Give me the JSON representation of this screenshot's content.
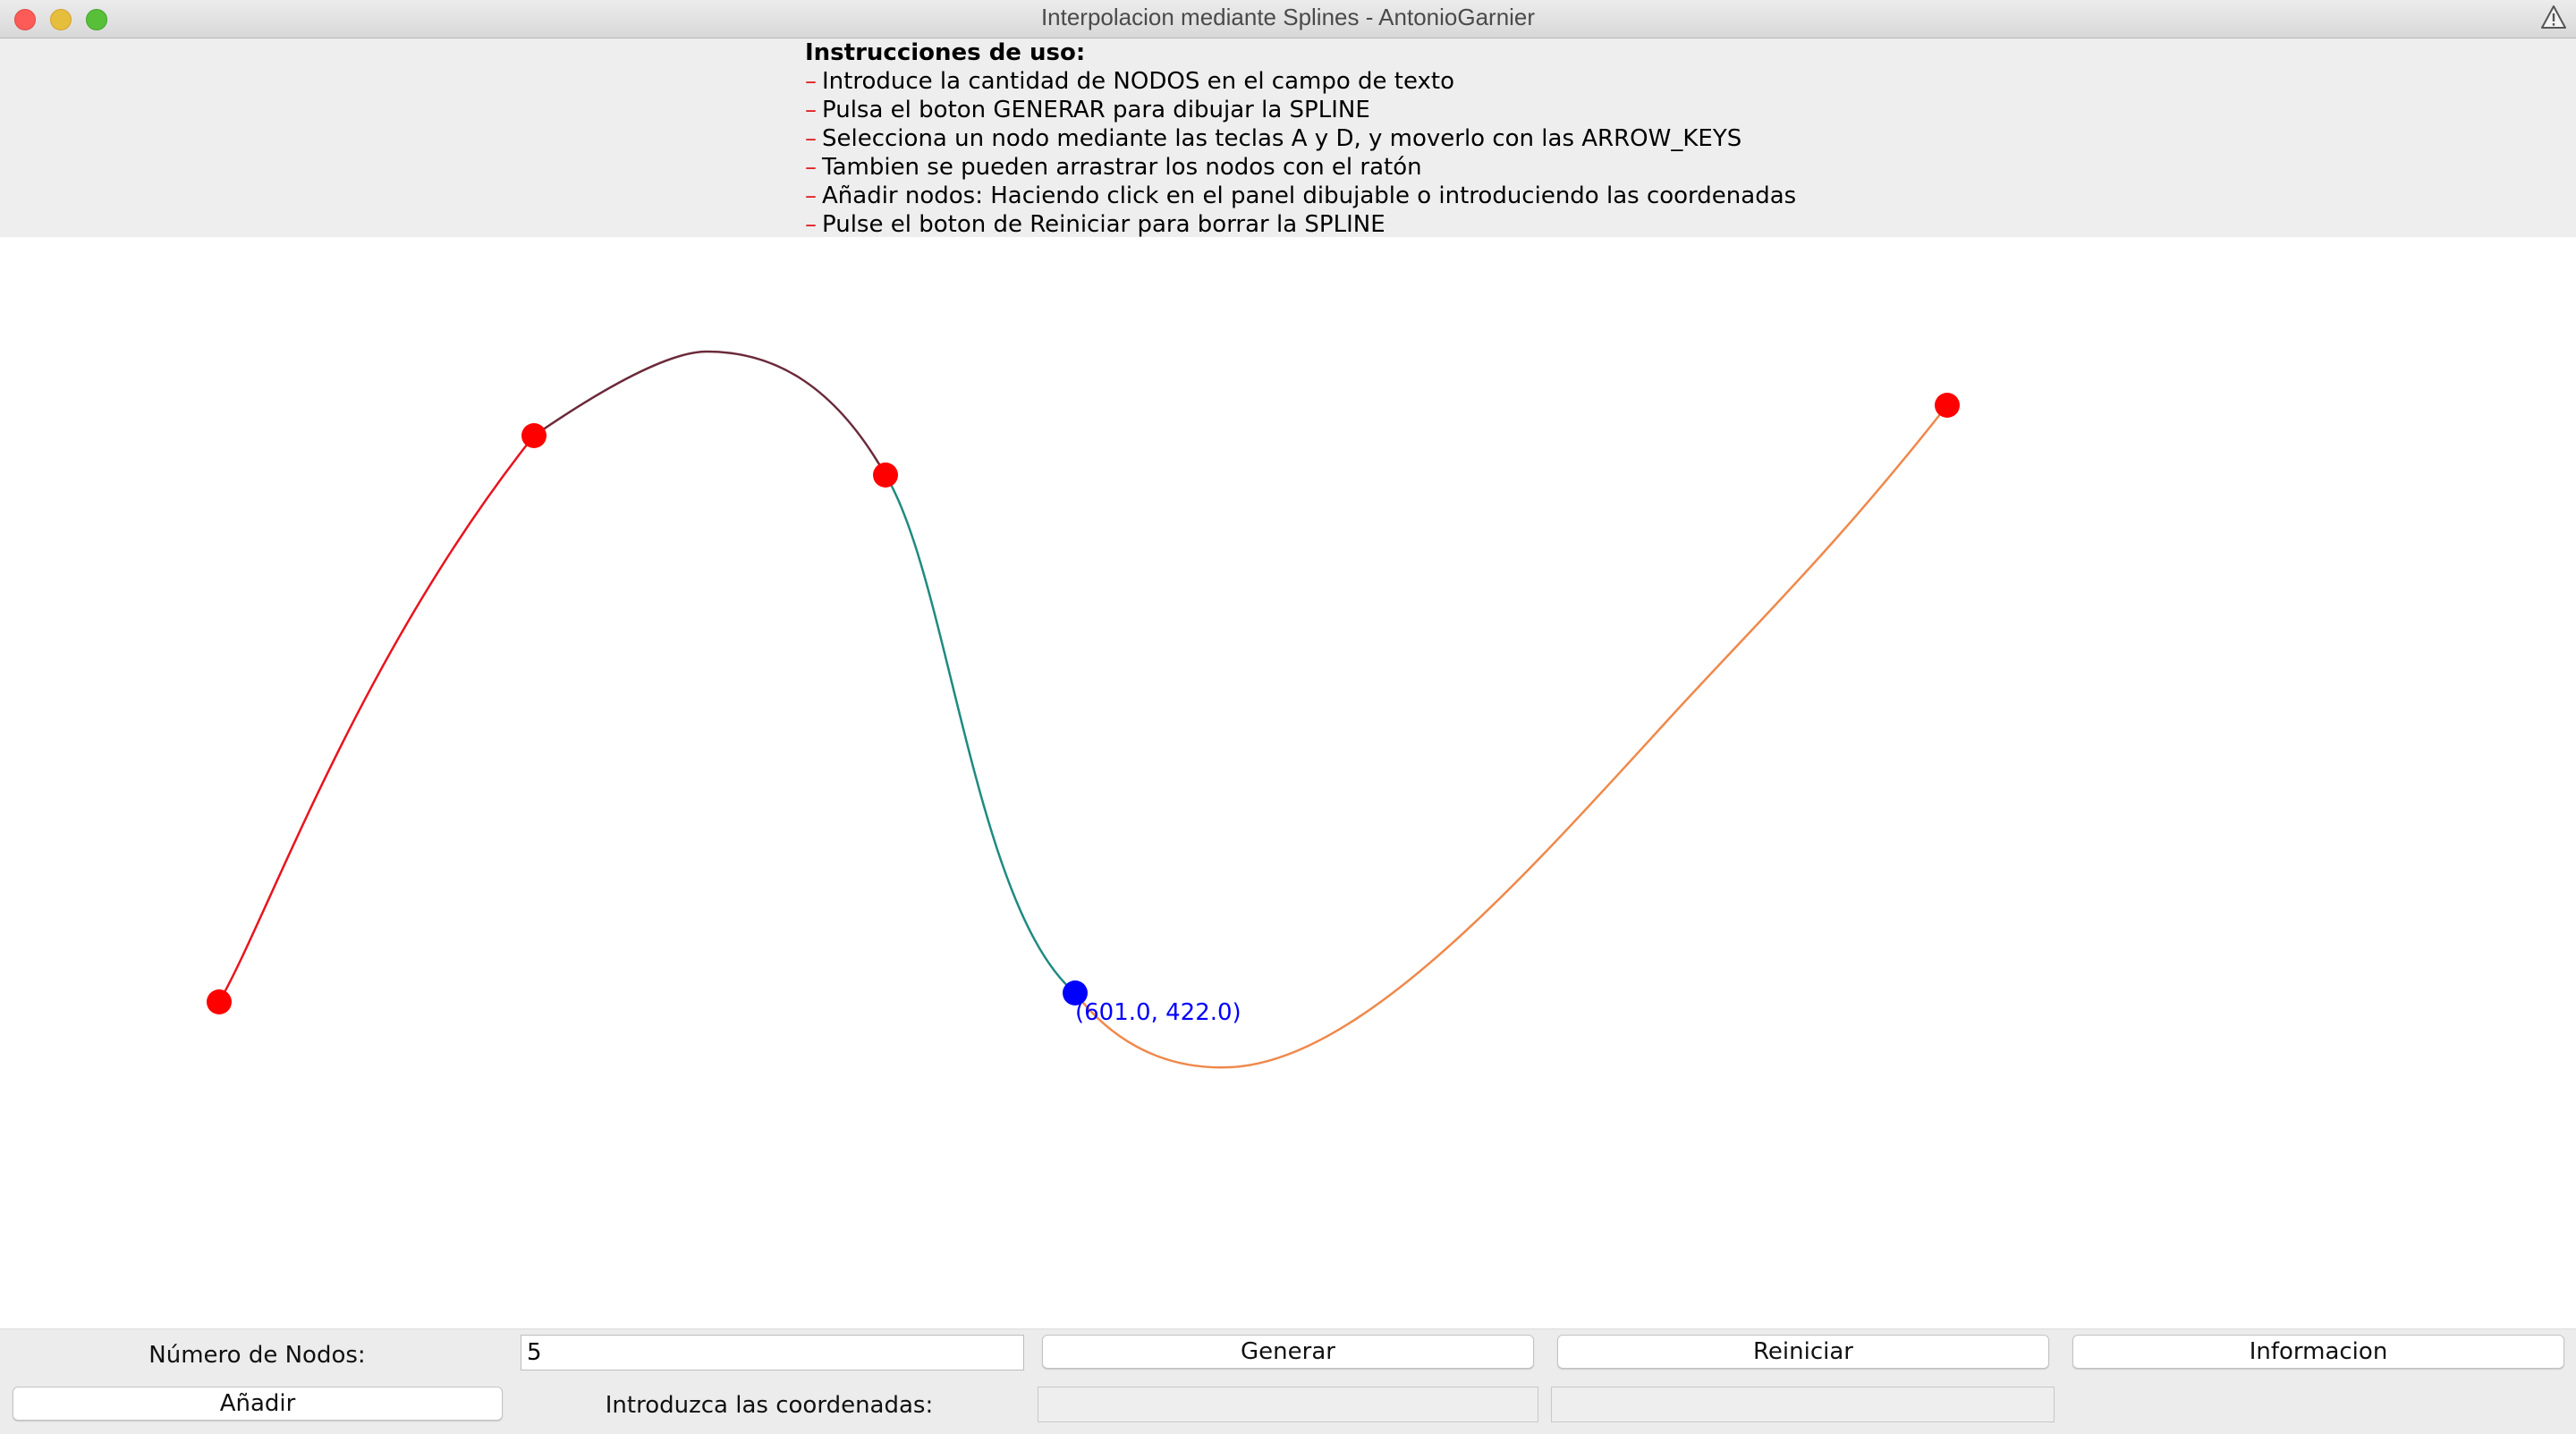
{
  "window": {
    "title": "Interpolacion mediante Splines - AntonioGarnier"
  },
  "instructions": {
    "heading": "Instrucciones de uso:",
    "bullet": "–",
    "lines": [
      "Introduce la cantidad de NODOS en el campo de texto",
      "Pulsa el boton GENERAR para dibujar la SPLINE",
      "Selecciona un nodo mediante las teclas A y D, y moverlo con las ARROW_KEYS",
      "Tambien se pueden arrastrar los nodos con el ratón",
      "Añadir nodos: Haciendo click en el panel dibujable o introduciendo las coordenadas",
      "Pulse el boton de Reiniciar para borrar la SPLINE"
    ]
  },
  "canvas": {
    "selected_label": "(601.0, 422.0)",
    "colors": {
      "node": "#ff0000",
      "selected_node": "#0000ff",
      "segments": [
        "#e8141e",
        "#6b2a3a",
        "#1e8a80",
        "#f0884a"
      ],
      "label": "#0000ff"
    }
  },
  "controls": {
    "num_nodes_label": "Número de Nodos:",
    "num_nodes_value": "5",
    "generate_button": "Generar",
    "reset_button": "Reiniciar",
    "info_button": "Informacion",
    "add_button": "Añadir",
    "coords_label": "Introduzca las coordenadas:",
    "coord_x_value": "",
    "coord_y_value": ""
  }
}
